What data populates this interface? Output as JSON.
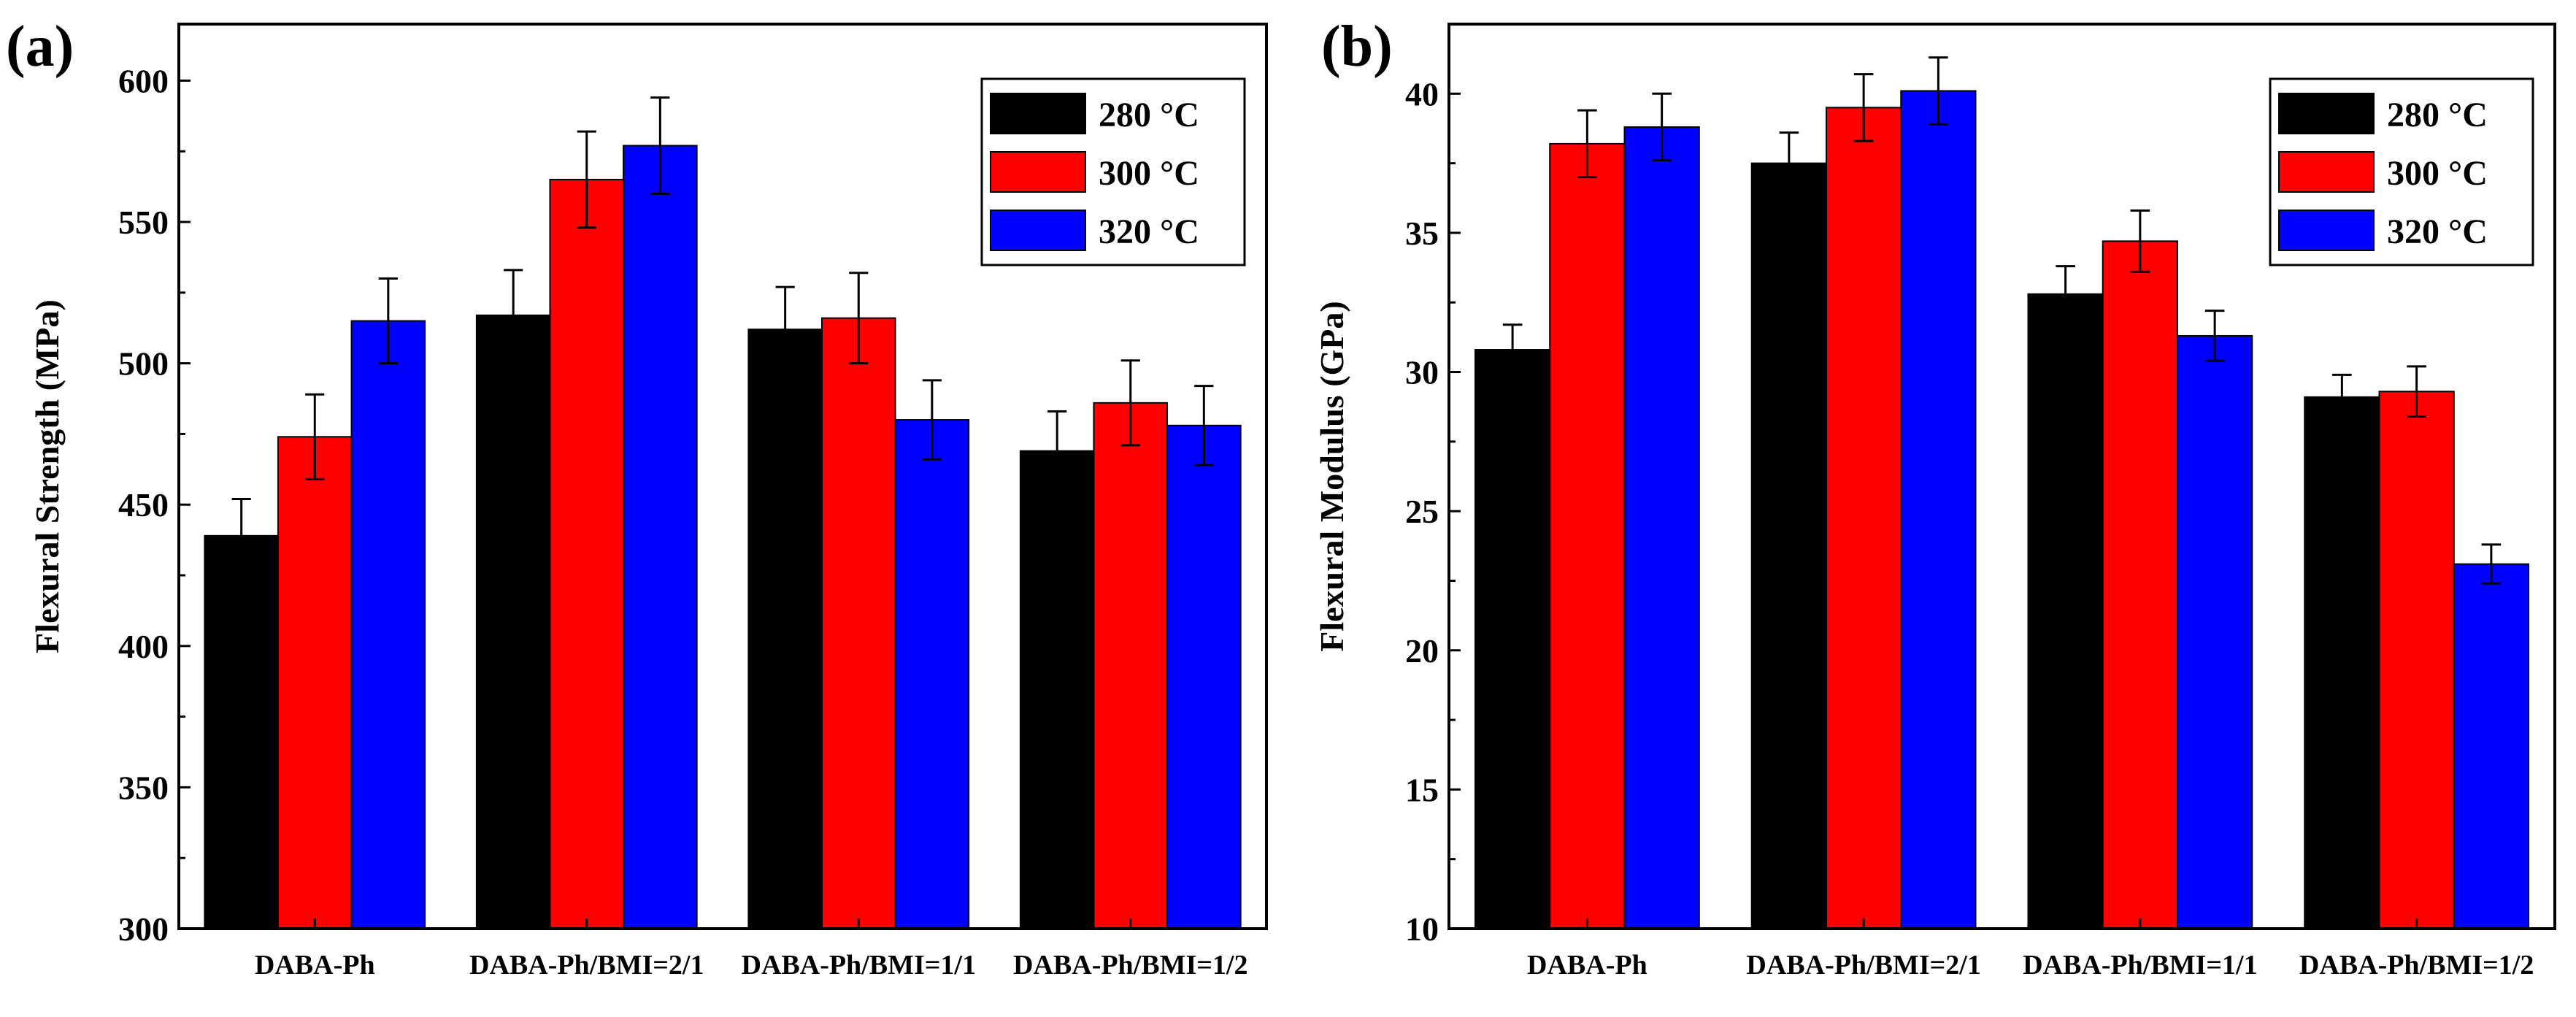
{
  "chart_data": [
    {
      "panel": "(a)",
      "type": "bar",
      "title": "",
      "xlabel": "",
      "ylabel": "Flexural Strength (MPa)",
      "ylim": [
        300,
        620
      ],
      "yticks": [
        300,
        350,
        400,
        450,
        500,
        550,
        600
      ],
      "categories": [
        "DABA-Ph",
        "DABA-Ph/BMI=2/1",
        "DABA-Ph/BMI=1/1",
        "DABA-Ph/BMI=1/2"
      ],
      "series": [
        {
          "name": "280 °C",
          "color": "#000000",
          "values": [
            439,
            517,
            512,
            469
          ],
          "errors": [
            13,
            16,
            15,
            14
          ]
        },
        {
          "name": "300 °C",
          "color": "#ff0000",
          "values": [
            474,
            565,
            516,
            486
          ],
          "errors": [
            15,
            17,
            16,
            15
          ]
        },
        {
          "name": "320 °C",
          "color": "#0000ff",
          "values": [
            515,
            577,
            480,
            478
          ],
          "errors": [
            15,
            17,
            14,
            14
          ]
        }
      ],
      "legend": "top-right"
    },
    {
      "panel": "(b)",
      "type": "bar",
      "title": "",
      "xlabel": "",
      "ylabel": "Flexural Modulus (GPa)",
      "ylim": [
        10,
        42.5
      ],
      "yticks": [
        10,
        15,
        20,
        25,
        30,
        35,
        40
      ],
      "categories": [
        "DABA-Ph",
        "DABA-Ph/BMI=2/1",
        "DABA-Ph/BMI=1/1",
        "DABA-Ph/BMI=1/2"
      ],
      "series": [
        {
          "name": "280 °C",
          "color": "#000000",
          "values": [
            30.8,
            37.5,
            32.8,
            29.1
          ],
          "errors": [
            0.9,
            1.1,
            1.0,
            0.8
          ]
        },
        {
          "name": "300 °C",
          "color": "#ff0000",
          "values": [
            38.2,
            39.5,
            34.7,
            29.3
          ],
          "errors": [
            1.2,
            1.2,
            1.1,
            0.9
          ]
        },
        {
          "name": "320 °C",
          "color": "#0000ff",
          "values": [
            38.8,
            40.1,
            31.3,
            23.1
          ],
          "errors": [
            1.2,
            1.2,
            0.9,
            0.7
          ]
        }
      ],
      "legend": "top-right"
    }
  ]
}
